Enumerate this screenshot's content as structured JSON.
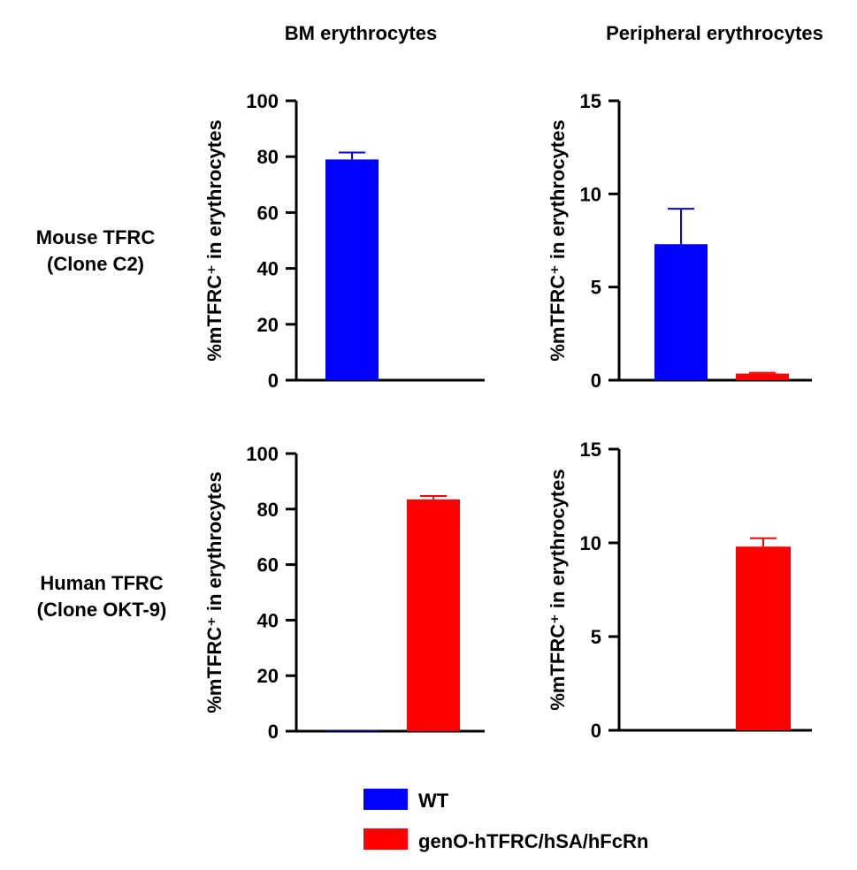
{
  "colors": {
    "wt": "#0000ff",
    "geno": "#ff0000",
    "axis": "#000000"
  },
  "column_titles": [
    "BM erythrocytes",
    "Peripheral erythrocytes"
  ],
  "row_labels": [
    {
      "line1": "Mouse TFRC",
      "line2": "(Clone C2)"
    },
    {
      "line1": "Human TFRC",
      "line2": "(Clone OKT-9)"
    }
  ],
  "legend": [
    {
      "label": "WT",
      "color": "#0000ff"
    },
    {
      "label": "genO-hTFRC/hSA/hFcRn",
      "color": "#ff0000"
    }
  ],
  "chart_data": [
    {
      "type": "bar",
      "title": "",
      "column": "BM erythrocytes",
      "row": "Mouse TFRC (Clone C2)",
      "ylabel": "%mTFRC⁺ in erythrocytes",
      "ylim": [
        0,
        100
      ],
      "yticks": [
        "0",
        "20",
        "40",
        "60",
        "80",
        "100"
      ],
      "categories": [
        "WT",
        "genO-hTFRC/hSA/hFcRn"
      ],
      "values": [
        79,
        0
      ],
      "errors": [
        2.5,
        0
      ]
    },
    {
      "type": "bar",
      "title": "",
      "column": "Peripheral erythrocytes",
      "row": "Mouse TFRC (Clone C2)",
      "ylabel": "%mTFRC⁺ in erythrocytes",
      "ylim": [
        0,
        15
      ],
      "yticks": [
        "0",
        "5",
        "10",
        "15"
      ],
      "categories": [
        "WT",
        "genO-hTFRC/hSA/hFcRn"
      ],
      "values": [
        7.3,
        0.35
      ],
      "errors": [
        1.9,
        0.05
      ]
    },
    {
      "type": "bar",
      "title": "",
      "column": "BM erythrocytes",
      "row": "Human TFRC (Clone OKT-9)",
      "ylabel": "%mTFRC⁺ in erythrocytes",
      "ylim": [
        0,
        100
      ],
      "yticks": [
        "0",
        "20",
        "40",
        "60",
        "80",
        "100"
      ],
      "categories": [
        "WT",
        "genO-hTFRC/hSA/hFcRn"
      ],
      "values": [
        0.2,
        83.5
      ],
      "errors": [
        0,
        1.2
      ]
    },
    {
      "type": "bar",
      "title": "",
      "column": "Peripheral erythrocytes",
      "row": "Human TFRC (Clone OKT-9)",
      "ylabel": "%mTFRC⁺ in erythrocytes",
      "ylim": [
        0,
        15
      ],
      "yticks": [
        "0",
        "5",
        "10",
        "15"
      ],
      "categories": [
        "WT",
        "genO-hTFRC/hSA/hFcRn"
      ],
      "values": [
        0,
        9.8
      ],
      "errors": [
        0,
        0.45
      ]
    }
  ]
}
